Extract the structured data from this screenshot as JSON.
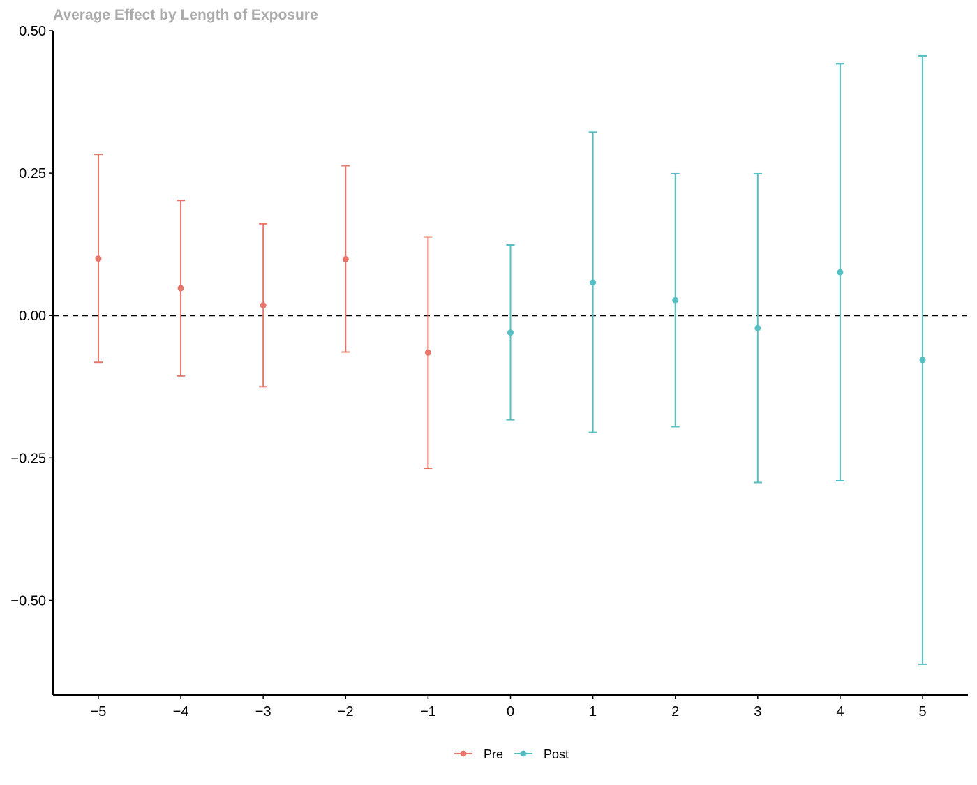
{
  "chart_data": {
    "type": "scatter",
    "title": "Average Effect by Length of Exposure",
    "xlabel": "",
    "ylabel": "",
    "x_ticks": [
      "−5",
      "−4",
      "−3",
      "−2",
      "−1",
      "0",
      "1",
      "2",
      "3",
      "4",
      "5"
    ],
    "y_ticks": [
      "0.50",
      "0.25",
      "0.00",
      "−0.25",
      "−0.50"
    ],
    "xlim": [
      -5.55,
      5.55
    ],
    "ylim": [
      -0.666,
      0.5
    ],
    "y_tick_values": [
      0.5,
      0.25,
      0.0,
      -0.25,
      -0.5
    ],
    "x_tick_values": [
      -5,
      -4,
      -3,
      -2,
      -1,
      0,
      1,
      2,
      3,
      4,
      5
    ],
    "reference_line": {
      "y": 0,
      "style": "dashed",
      "color": "#000000"
    },
    "grid": false,
    "legend_position": "bottom",
    "series": [
      {
        "name": "Pre",
        "color": "#E8756A",
        "points": [
          {
            "x": -5,
            "y": 0.1,
            "lower": -0.082,
            "upper": 0.283
          },
          {
            "x": -4,
            "y": 0.048,
            "lower": -0.106,
            "upper": 0.202
          },
          {
            "x": -3,
            "y": 0.018,
            "lower": -0.125,
            "upper": 0.161
          },
          {
            "x": -2,
            "y": 0.099,
            "lower": -0.064,
            "upper": 0.263
          },
          {
            "x": -1,
            "y": -0.065,
            "lower": -0.268,
            "upper": 0.138
          }
        ]
      },
      {
        "name": "Post",
        "color": "#56BFC4",
        "points": [
          {
            "x": 0,
            "y": -0.03,
            "lower": -0.183,
            "upper": 0.124
          },
          {
            "x": 1,
            "y": 0.058,
            "lower": -0.205,
            "upper": 0.322
          },
          {
            "x": 2,
            "y": 0.027,
            "lower": -0.195,
            "upper": 0.249
          },
          {
            "x": 3,
            "y": -0.022,
            "lower": -0.293,
            "upper": 0.249
          },
          {
            "x": 4,
            "y": 0.076,
            "lower": -0.29,
            "upper": 0.442
          },
          {
            "x": 5,
            "y": -0.078,
            "lower": -0.612,
            "upper": 0.456
          }
        ]
      }
    ]
  }
}
